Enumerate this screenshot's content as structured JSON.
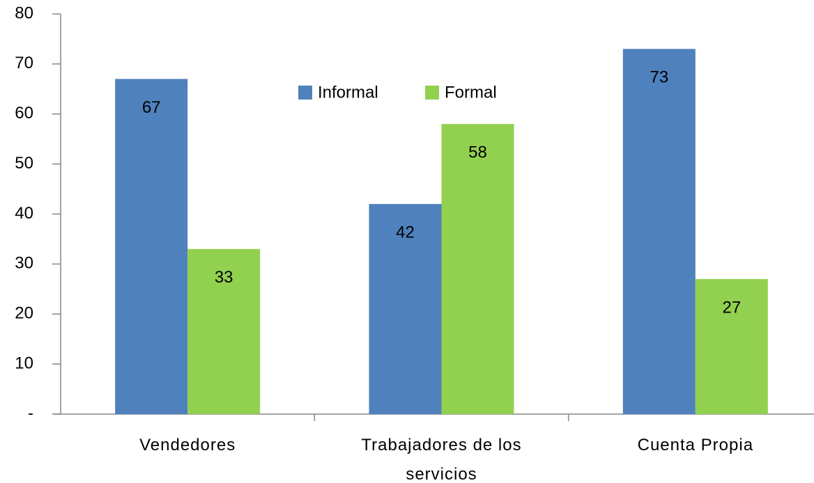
{
  "chart_data": {
    "type": "bar",
    "categories": [
      "Vendedores",
      "Trabajadores de los servicios",
      "Cuenta Propia"
    ],
    "series": [
      {
        "name": "Informal",
        "color": "#4f81bd",
        "values": [
          67,
          42,
          73
        ]
      },
      {
        "name": "Formal",
        "color": "#92d050",
        "values": [
          33,
          58,
          27
        ]
      }
    ],
    "ylim": [
      0,
      80
    ],
    "yticks": [
      {
        "value": 0,
        "label": "-"
      },
      10,
      20,
      30,
      40,
      50,
      60,
      70,
      80
    ],
    "legend": "top"
  }
}
